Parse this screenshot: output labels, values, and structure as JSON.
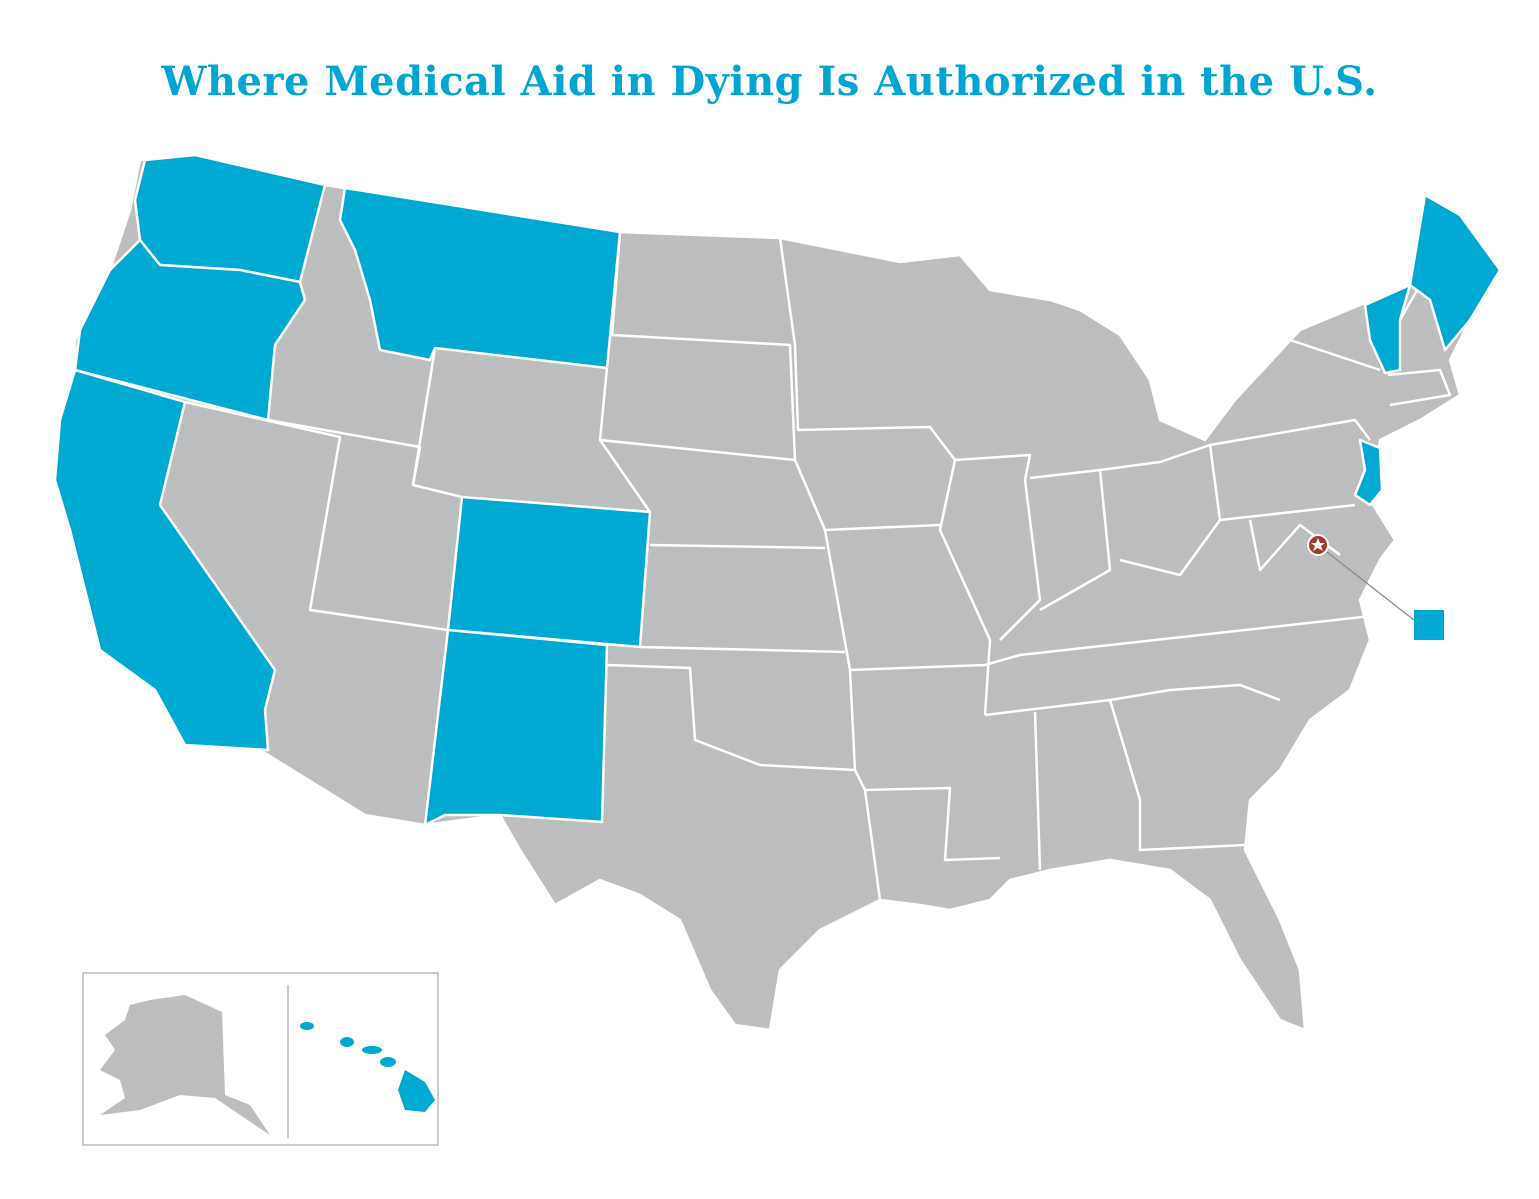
{
  "header": {
    "title": "Where Medical Aid in Dying Is Authorized in the U.S."
  }
}
